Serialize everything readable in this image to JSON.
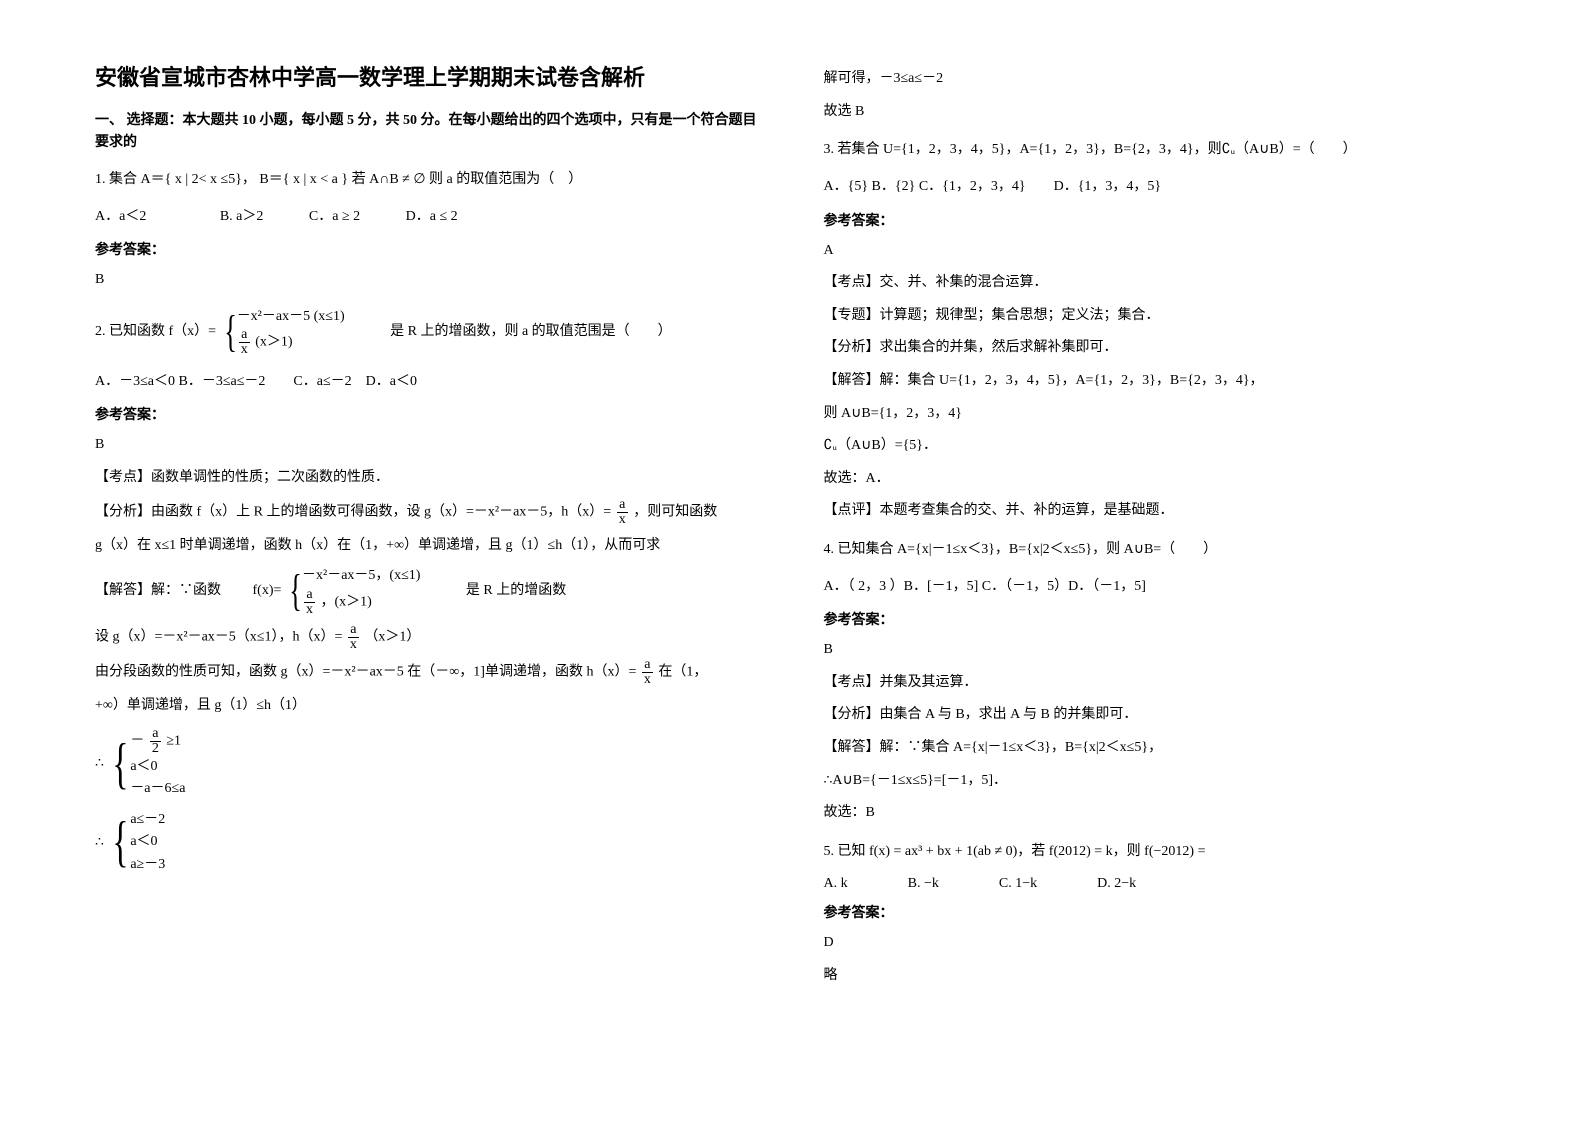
{
  "title": "安徽省宣城市杏林中学高一数学理上学期期末试卷含解析",
  "section1_header": "一、 选择题：本大题共 10 小题，每小题 5 分，共 50 分。在每小题给出的四个选项中，只有是一个符合题目要求的",
  "q1": {
    "stem": "1. 集合 A＝{ x | 2< x ≤5}， B＝{ x | x < a } 若 A∩B ≠ ∅ 则 a 的取值范围为（　）",
    "optA": "A．a＜2",
    "optB": "B. a＞2",
    "optC": "C．a ≥ 2",
    "optD": "D．a ≤ 2",
    "ans_label": "参考答案：",
    "ans": "B"
  },
  "q2": {
    "stem_pre": "2. 已知函数 f（x）=",
    "piece1": "－x²－ax－5 (x≤1)",
    "piece2_num": "a",
    "piece2_den": "x",
    "piece2_cond": "(x＞1)",
    "stem_post": "　　　是 R 上的增函数，则 a 的取值范围是（　　）",
    "opts": "A．－3≤a＜0  B．－3≤a≤－2　　C．a≤－2　D．a＜0",
    "ans_label": "参考答案：",
    "ans": "B",
    "analysis1": "【考点】函数单调性的性质；二次函数的性质．",
    "analysis2_pre": "【分析】由函数 f（x）上 R 上的增函数可得函数，设 g（x）=－x²－ax－5，h（x）= ",
    "analysis2_num": "a",
    "analysis2_den": "x",
    "analysis2_post": "，则可知函数",
    "analysis3": "g（x）在 x≤1 时单调递增，函数 h（x）在（1，+∞）单调递增，且 g（1）≤h（1），从而可求",
    "solve_pre": "【解答】解：∵函数",
    "solve_fx": "f(x)=",
    "solve_p1": "－x²－ax－5，(x≤1)",
    "solve_p2_num": "a",
    "solve_p2_den": "x",
    "solve_p2_cond": "，(x＞1)",
    "solve_post": "　　　是 R 上的增函数",
    "solve_g_pre": "设 g（x）=－x²－ax－5（x≤1），h（x）= ",
    "solve_g_num": "a",
    "solve_g_den": "x",
    "solve_g_post": "（x＞1）",
    "solve_piecewise_pre": "由分段函数的性质可知，函数 g（x）=－x²－ax－5 在（－∞，1]单调递增，函数 h（x）= ",
    "solve_piece_num": "a",
    "solve_piece_den": "x",
    "solve_piece_post": " 在（1，",
    "solve_tail": "+∞）单调递增，且 g（1）≤h（1）",
    "sys1_a": "－",
    "sys1_num": "a",
    "sys1_den": "2",
    "sys1_post": "≥1",
    "sys1_b": "a＜0",
    "sys1_c": "－a－6≤a",
    "sys2_a": "a≤－2",
    "sys2_b": "a＜0",
    "sys2_c": "a≥－3",
    "therefore": "∴"
  },
  "right": {
    "solve_result": "解可得，－3≤a≤－2",
    "choose": "故选 B",
    "q3_stem": "3. 若集合 U={1，2，3，4，5}，A={1，2，3}，B={2，3，4}，则∁ᵤ（A∪B）=（　　）",
    "q3_opts": "A．{5}  B．{2}  C．{1，2，3，4}　　D．{1，3，4，5}",
    "q3_ans_label": "参考答案：",
    "q3_ans": "A",
    "q3_a1": "【考点】交、并、补集的混合运算．",
    "q3_a2": "【专题】计算题；规律型；集合思想；定义法；集合．",
    "q3_a3": "【分析】求出集合的并集，然后求解补集即可．",
    "q3_a4": "【解答】解：集合 U={1，2，3，4，5}，A={1，2，3}，B={2，3，4}，",
    "q3_a5": "则 A∪B={1，2，3，4}",
    "q3_a6": "∁ᵤ（A∪B）={5}．",
    "q3_a7": "故选：A．",
    "q3_a8": "【点评】本题考查集合的交、并、补的运算，是基础题．",
    "q4_stem": "4. 已知集合 A={x|－1≤x＜3}，B={x|2＜x≤5}，则 A∪B=（　　）",
    "q4_opts": "A．（ 2，3 ）B．[－1，5]  C．（－1，5）D．（－1，5]",
    "q4_ans_label": "参考答案：",
    "q4_ans": "B",
    "q4_a1": "【考点】并集及其运算．",
    "q4_a2": "【分析】由集合 A 与 B，求出 A 与 B 的并集即可．",
    "q4_a3": "【解答】解：∵集合 A={x|－1≤x＜3}，B={x|2＜x≤5}，",
    "q4_a4": "∴A∪B={－1≤x≤5}=[－1，5]．",
    "q4_a5": "故选：B",
    "q5_stem": "5. 已知 f(x) = ax³ + bx + 1(ab ≠ 0)，若 f(2012) = k，则 f(−2012) =",
    "q5_A": "A. k",
    "q5_B": "B. −k",
    "q5_C": "C. 1−k",
    "q5_D": "D. 2−k",
    "q5_ans_label": "参考答案：",
    "q5_ans": "D",
    "q5_note": "略"
  }
}
